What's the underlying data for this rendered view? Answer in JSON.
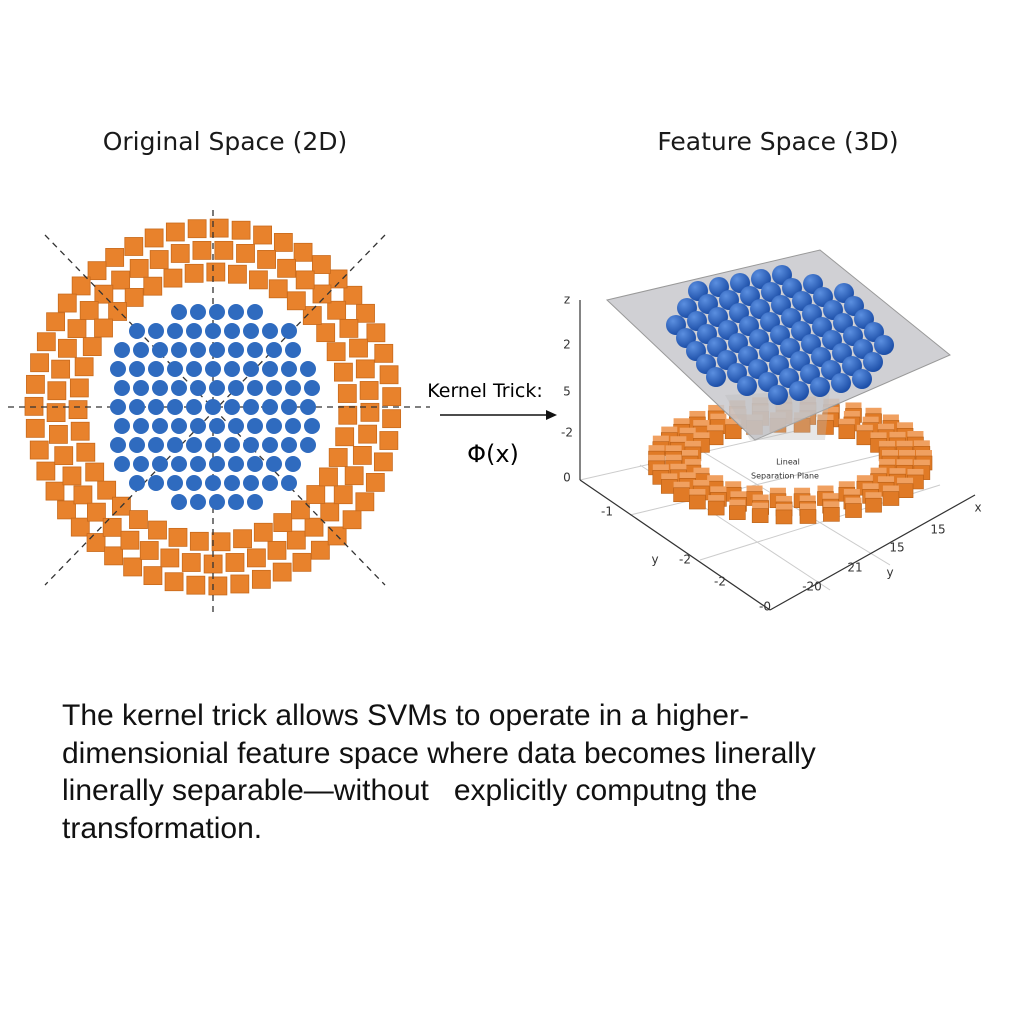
{
  "left_panel": {
    "title": "Original Space (2D)"
  },
  "right_panel": {
    "title": "Feature Space (3D)",
    "axis_labels": [
      "z",
      "2",
      "5",
      "-2",
      "0",
      "-1",
      "y",
      "-2",
      "-2",
      "-0",
      "-20",
      "21",
      "y",
      "15",
      "15",
      "x"
    ],
    "plane_label": [
      "Lineal",
      "Separation Plane"
    ]
  },
  "transform": {
    "label": "Kernel Trick:",
    "function": "Φ(x)"
  },
  "caption": {
    "lines": [
      "The kernel trick allows SVMs to operate in a higher-",
      "dimensionial feature space where data becomes linerally",
      "linerally separable—without   explicitly computng the",
      "transformation."
    ]
  }
}
